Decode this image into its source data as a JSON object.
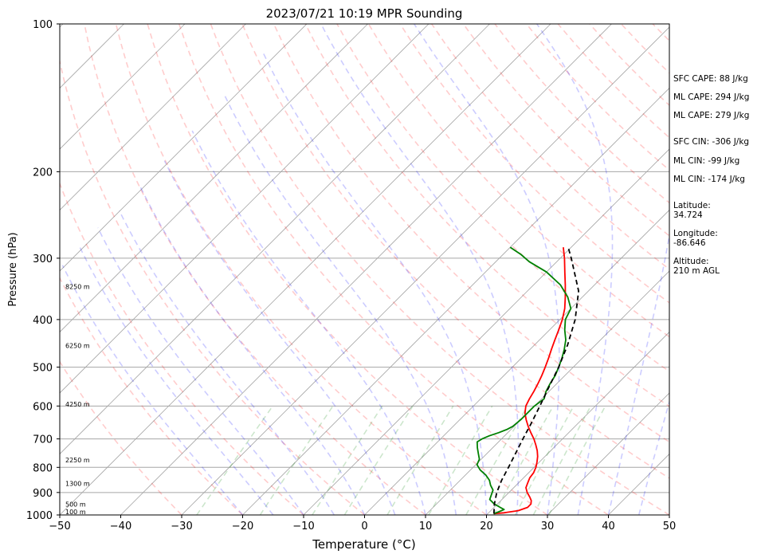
{
  "chart_data": {
    "type": "line",
    "title": "2023/07/21 10:19 MPR Sounding",
    "xlabel": "Temperature (°C)",
    "ylabel": "Pressure (hPa)",
    "xlim": [
      -50,
      50
    ],
    "ylim": [
      1000,
      100
    ],
    "y_scale": "log",
    "grid": true,
    "x_ticks": [
      -50,
      -40,
      -30,
      -20,
      -10,
      0,
      10,
      20,
      30,
      40,
      50
    ],
    "x_tick_labels": [
      "−50",
      "−40",
      "−30",
      "−20",
      "−10",
      "0",
      "10",
      "20",
      "30",
      "40",
      "50"
    ],
    "y_ticks": [
      1000,
      900,
      800,
      700,
      600,
      500,
      400,
      300,
      200,
      100
    ],
    "y_tick_labels": [
      "1000",
      "900",
      "800",
      "700",
      "600",
      "500",
      "400",
      "300",
      "200",
      "100"
    ],
    "height_labels": [
      {
        "p": 343,
        "text": "8250 m"
      },
      {
        "p": 452,
        "text": "6250 m"
      },
      {
        "p": 595,
        "text": "4250 m"
      },
      {
        "p": 772,
        "text": "2250 m"
      },
      {
        "p": 862,
        "text": "1300 m"
      },
      {
        "p": 950,
        "text": "500 m"
      },
      {
        "p": 985,
        "text": "100 m"
      }
    ],
    "series": [
      {
        "color": "#ff0000",
        "p": [
          994,
          990,
          980,
          965,
          950,
          935,
          920,
          900,
          880,
          860,
          840,
          820,
          800,
          780,
          760,
          740,
          720,
          700,
          680,
          660,
          640,
          620,
          600,
          580,
          560,
          540,
          520,
          500,
          480,
          460,
          440,
          420,
          400,
          380,
          360,
          340,
          320,
          300,
          285
        ],
        "values": [
          21.0,
          22.5,
          24.5,
          25.5,
          25.5,
          25.0,
          24.2,
          23.0,
          22.0,
          21.5,
          21.0,
          20.8,
          20.3,
          19.6,
          18.8,
          17.8,
          16.6,
          15.3,
          13.8,
          12.3,
          10.9,
          9.6,
          8.6,
          8.0,
          7.5,
          6.9,
          6.2,
          5.4,
          4.5,
          3.5,
          2.5,
          1.5,
          0.4,
          -1.0,
          -2.8,
          -4.8,
          -7.0,
          -9.3,
          -11.3
        ]
      },
      {
        "color": "#008000",
        "p": [
          994,
          985,
          975,
          965,
          950,
          930,
          910,
          890,
          870,
          850,
          830,
          810,
          790,
          770,
          750,
          730,
          710,
          700,
          690,
          680,
          670,
          660,
          640,
          620,
          600,
          580,
          560,
          540,
          520,
          500,
          480,
          460,
          440,
          420,
          400,
          380,
          360,
          340,
          320,
          305,
          295,
          285
        ],
        "values": [
          21.0,
          21.5,
          22.0,
          21.0,
          19.5,
          18.0,
          17.5,
          17.0,
          15.8,
          14.8,
          13.4,
          11.6,
          10.2,
          9.7,
          8.6,
          7.5,
          6.5,
          6.8,
          7.5,
          8.5,
          9.3,
          9.8,
          10.0,
          10.0,
          10.0,
          10.4,
          9.5,
          8.9,
          8.4,
          7.6,
          6.7,
          5.6,
          4.3,
          2.5,
          0.9,
          0.0,
          -2.4,
          -5.6,
          -10.0,
          -14.5,
          -17.0,
          -20.0
        ]
      },
      {
        "color": "#000000",
        "dashed": true,
        "p": [
          994,
          950,
          900,
          850,
          800,
          750,
          700,
          650,
          600,
          550,
          500,
          450,
          400,
          350,
          300,
          285
        ],
        "values": [
          21.0,
          19.5,
          18.0,
          16.8,
          15.8,
          14.7,
          13.5,
          12.3,
          10.9,
          9.3,
          7.6,
          5.4,
          2.5,
          -1.6,
          -8.2,
          -10.5
        ]
      }
    ]
  },
  "side_info": [
    "SFC CAPE: 88 J/kg",
    "ML CAPE: 294 J/kg",
    "ML CAPE: 279 J/kg",
    "SFC CIN: -306 J/kg",
    "ML CIN: -99 J/kg",
    "ML CIN: -174 J/kg",
    "Latitude:\n34.724",
    "Longitude:\n-86.646",
    "Altitude:\n210 m AGL"
  ]
}
